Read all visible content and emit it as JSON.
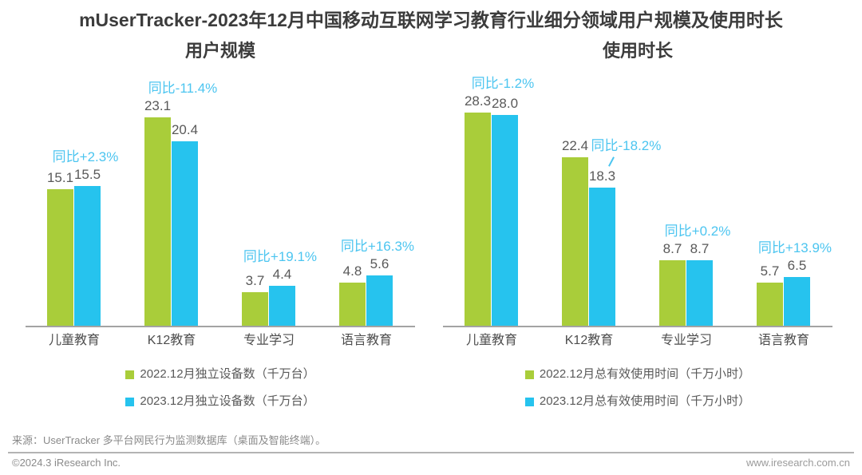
{
  "page": {
    "title": "mUserTracker-2023年12月中国移动互联网学习教育行业细分领域用户规模及使用时长",
    "footer": {
      "source": "来源：UserTracker 多平台网民行为监测数据库（桌面及智能终端）。",
      "copyright": "©2024.3 iResearch Inc.",
      "website": "www.iresearch.com.cn"
    }
  },
  "colors": {
    "series_2022": "#a9cd3a",
    "series_2023": "#26c3ee",
    "yoy_text": "#4cc5f0",
    "value_text": "#595959",
    "axis_line": "#a3a3a3"
  },
  "chart_data": [
    {
      "type": "bar",
      "title": "用户规模",
      "categories": [
        "儿童教育",
        "K12教育",
        "专业学习",
        "语言教育"
      ],
      "series": [
        {
          "name": "2022.12月独立设备数（千万台）",
          "color_key": "series_2022",
          "values": [
            15.1,
            23.1,
            3.7,
            4.8
          ]
        },
        {
          "name": "2023.12月独立设备数（千万台）",
          "color_key": "series_2023",
          "values": [
            15.5,
            20.4,
            4.4,
            5.6
          ]
        }
      ],
      "annotations": [
        {
          "label": "同比+2.3%",
          "layout": "above"
        },
        {
          "label": "同比-11.4%",
          "layout": "above"
        },
        {
          "label": "同比+19.1%",
          "layout": "above"
        },
        {
          "label": "同比+16.3%",
          "layout": "above"
        }
      ],
      "ylim": [
        0,
        25
      ],
      "grid": false,
      "legend_position": "bottom",
      "xlabel": "",
      "ylabel": ""
    },
    {
      "type": "bar",
      "title": "使用时长",
      "categories": [
        "儿童教育",
        "K12教育",
        "专业学习",
        "语言教育"
      ],
      "series": [
        {
          "name": "2022.12月总有效使用时间（千万小时）",
          "color_key": "series_2022",
          "values": [
            28.3,
            22.4,
            8.7,
            5.7
          ]
        },
        {
          "name": "2023.12月总有效使用时间（千万小时）",
          "color_key": "series_2023",
          "values": [
            28.0,
            18.3,
            8.7,
            6.5
          ]
        }
      ],
      "annotations": [
        {
          "label": "同比-1.2%",
          "layout": "above"
        },
        {
          "label": "同比-18.2%",
          "layout": "beside"
        },
        {
          "label": "同比+0.2%",
          "layout": "above"
        },
        {
          "label": "同比+13.9%",
          "layout": "above"
        }
      ],
      "ylim": [
        0,
        30
      ],
      "grid": false,
      "legend_position": "bottom",
      "xlabel": "",
      "ylabel": ""
    }
  ]
}
